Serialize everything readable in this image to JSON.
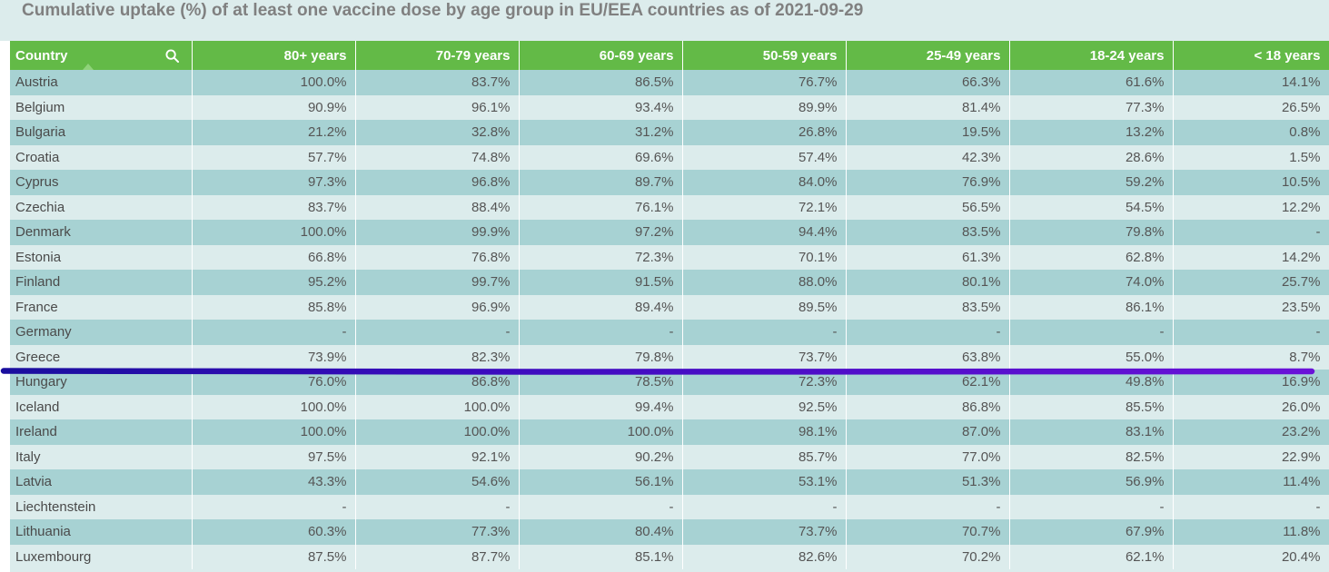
{
  "title": "Cumulative uptake (%) of at least one vaccine dose by age group in EU/EEA countries as of 2021-09-29",
  "headers": [
    "Country",
    "80+ years",
    "70-79 years",
    "60-69 years",
    "50-59 years",
    "25-49 years",
    "18-24 years",
    "< 18 years"
  ],
  "icons": {
    "search": "search-icon",
    "sort": "sort-ascending-icon"
  },
  "colors": {
    "header_bg": "#63ba47",
    "row_dark": "#a7d2d3",
    "row_light": "#dcecec",
    "annotation_stroke": "#5a0fd2"
  },
  "rows": [
    [
      "Austria",
      "100.0%",
      "83.7%",
      "86.5%",
      "76.7%",
      "66.3%",
      "61.6%",
      "14.1%"
    ],
    [
      "Belgium",
      "90.9%",
      "96.1%",
      "93.4%",
      "89.9%",
      "81.4%",
      "77.3%",
      "26.5%"
    ],
    [
      "Bulgaria",
      "21.2%",
      "32.8%",
      "31.2%",
      "26.8%",
      "19.5%",
      "13.2%",
      "0.8%"
    ],
    [
      "Croatia",
      "57.7%",
      "74.8%",
      "69.6%",
      "57.4%",
      "42.3%",
      "28.6%",
      "1.5%"
    ],
    [
      "Cyprus",
      "97.3%",
      "96.8%",
      "89.7%",
      "84.0%",
      "76.9%",
      "59.2%",
      "10.5%"
    ],
    [
      "Czechia",
      "83.7%",
      "88.4%",
      "76.1%",
      "72.1%",
      "56.5%",
      "54.5%",
      "12.2%"
    ],
    [
      "Denmark",
      "100.0%",
      "99.9%",
      "97.2%",
      "94.4%",
      "83.5%",
      "79.8%",
      "-"
    ],
    [
      "Estonia",
      "66.8%",
      "76.8%",
      "72.3%",
      "70.1%",
      "61.3%",
      "62.8%",
      "14.2%"
    ],
    [
      "Finland",
      "95.2%",
      "99.7%",
      "91.5%",
      "88.0%",
      "80.1%",
      "74.0%",
      "25.7%"
    ],
    [
      "France",
      "85.8%",
      "96.9%",
      "89.4%",
      "89.5%",
      "83.5%",
      "86.1%",
      "23.5%"
    ],
    [
      "Germany",
      "-",
      "-",
      "-",
      "-",
      "-",
      "-",
      "-"
    ],
    [
      "Greece",
      "73.9%",
      "82.3%",
      "79.8%",
      "73.7%",
      "63.8%",
      "55.0%",
      "8.7%"
    ],
    [
      "Hungary",
      "76.0%",
      "86.8%",
      "78.5%",
      "72.3%",
      "62.1%",
      "49.8%",
      "16.9%"
    ],
    [
      "Iceland",
      "100.0%",
      "100.0%",
      "99.4%",
      "92.5%",
      "86.8%",
      "85.5%",
      "26.0%"
    ],
    [
      "Ireland",
      "100.0%",
      "100.0%",
      "100.0%",
      "98.1%",
      "87.0%",
      "83.1%",
      "23.2%"
    ],
    [
      "Italy",
      "97.5%",
      "92.1%",
      "90.2%",
      "85.7%",
      "77.0%",
      "82.5%",
      "22.9%"
    ],
    [
      "Latvia",
      "43.3%",
      "54.6%",
      "56.1%",
      "53.1%",
      "51.3%",
      "56.9%",
      "11.4%"
    ],
    [
      "Liechtenstein",
      "-",
      "-",
      "-",
      "-",
      "-",
      "-",
      "-"
    ],
    [
      "Lithuania",
      "60.3%",
      "77.3%",
      "80.4%",
      "73.7%",
      "70.7%",
      "67.9%",
      "11.8%"
    ],
    [
      "Luxembourg",
      "87.5%",
      "87.7%",
      "85.1%",
      "82.6%",
      "70.2%",
      "62.1%",
      "20.4%"
    ]
  ]
}
